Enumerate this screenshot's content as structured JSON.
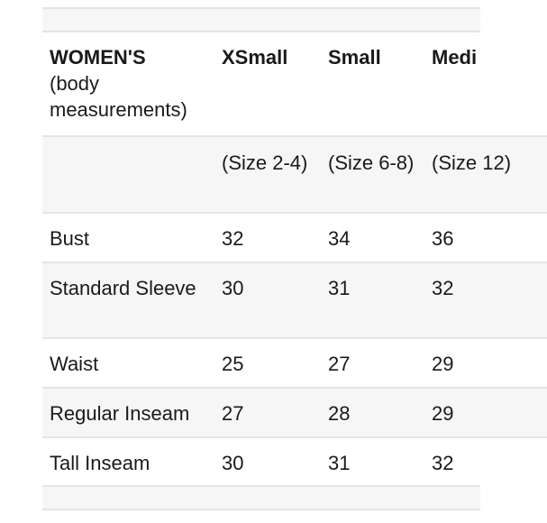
{
  "table": {
    "header": {
      "title": "WOMEN'S",
      "subtitle": "(body measurements)",
      "sizes": [
        "XSmall",
        "Small",
        "Medi"
      ]
    },
    "size_ranges": [
      "(Size 2-4)",
      "(Size 6-8)",
      "(Size 12)"
    ],
    "rows": [
      {
        "label": "Bust",
        "values": [
          "32",
          "34",
          "36"
        ]
      },
      {
        "label": "Standard Sleeve",
        "values": [
          "30",
          "31",
          "32"
        ]
      },
      {
        "label": "Waist",
        "values": [
          "25",
          "27",
          "29"
        ]
      },
      {
        "label": "Regular Inseam",
        "values": [
          "27",
          "28",
          "29"
        ]
      },
      {
        "label": "Tall Inseam",
        "values": [
          "30",
          "31",
          "32"
        ]
      }
    ]
  },
  "colors": {
    "shaded_row": "#f6f6f6",
    "rule": "#e4e4e4",
    "text": "#1a1a1a"
  }
}
